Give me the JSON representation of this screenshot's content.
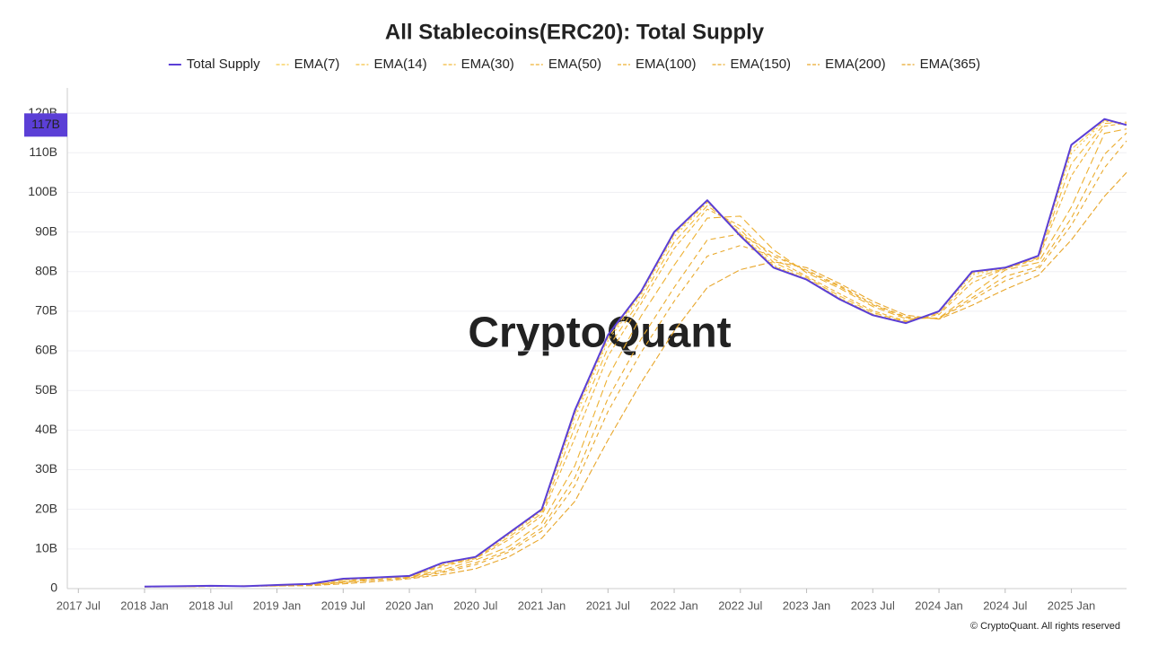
{
  "chart_data": {
    "type": "line",
    "title": "All Stablecoins(ERC20): Total Supply",
    "watermark": "CryptoQuant",
    "copyright": "© CryptoQuant. All rights reserved",
    "x": [
      "2018-01",
      "2018-04",
      "2018-07",
      "2018-10",
      "2019-01",
      "2019-04",
      "2019-07",
      "2019-10",
      "2020-01",
      "2020-04",
      "2020-07",
      "2020-10",
      "2021-01",
      "2021-04",
      "2021-07",
      "2021-10",
      "2022-01",
      "2022-04",
      "2022-07",
      "2022-10",
      "2023-01",
      "2023-04",
      "2023-07",
      "2023-10",
      "2024-01",
      "2024-04",
      "2024-07",
      "2024-10",
      "2025-01",
      "2025-04",
      "2025-06"
    ],
    "xlim": [
      "2017-06",
      "2025-06"
    ],
    "xticks": [
      {
        "value": "2017-07",
        "label": "2017 Jul"
      },
      {
        "value": "2018-01",
        "label": "2018 Jan"
      },
      {
        "value": "2018-07",
        "label": "2018 Jul"
      },
      {
        "value": "2019-01",
        "label": "2019 Jan"
      },
      {
        "value": "2019-07",
        "label": "2019 Jul"
      },
      {
        "value": "2020-01",
        "label": "2020 Jan"
      },
      {
        "value": "2020-07",
        "label": "2020 Jul"
      },
      {
        "value": "2021-01",
        "label": "2021 Jan"
      },
      {
        "value": "2021-07",
        "label": "2021 Jul"
      },
      {
        "value": "2022-01",
        "label": "2022 Jan"
      },
      {
        "value": "2022-07",
        "label": "2022 Jul"
      },
      {
        "value": "2023-01",
        "label": "2023 Jan"
      },
      {
        "value": "2023-07",
        "label": "2023 Jul"
      },
      {
        "value": "2024-01",
        "label": "2024 Jan"
      },
      {
        "value": "2024-07",
        "label": "2024 Jul"
      },
      {
        "value": "2025-01",
        "label": "2025 Jan"
      }
    ],
    "ylim": [
      0,
      125
    ],
    "yticks": [
      0,
      {
        "value": 10,
        "label": "10B"
      },
      {
        "value": 20,
        "label": "20B"
      },
      {
        "value": 30,
        "label": "30B"
      },
      {
        "value": 40,
        "label": "40B"
      },
      {
        "value": 50,
        "label": "50B"
      },
      {
        "value": 60,
        "label": "60B"
      },
      {
        "value": 70,
        "label": "70B"
      },
      {
        "value": 80,
        "label": "80B"
      },
      {
        "value": 90,
        "label": "90B"
      },
      {
        "value": 100,
        "label": "100B"
      },
      {
        "value": 110,
        "label": "110B"
      },
      {
        "value": 120,
        "label": "120B"
      }
    ],
    "grid": true,
    "series": [
      {
        "name": "Total Supply",
        "color": "#5b3fd6",
        "values": [
          0.5,
          0.6,
          0.7,
          0.6,
          0.9,
          1.2,
          2.5,
          2.8,
          3.2,
          6.5,
          8,
          14,
          20,
          45,
          64,
          75,
          90,
          98,
          89,
          81,
          78,
          73,
          69,
          67,
          70,
          80,
          81,
          84,
          112,
          118.5,
          117
        ],
        "value_labels": [
          null,
          null,
          null,
          null,
          null,
          null,
          null,
          null,
          null,
          null,
          null,
          null,
          null,
          null,
          null,
          null,
          null,
          null,
          null,
          null,
          null,
          null,
          null,
          null,
          null,
          null,
          null,
          null,
          null,
          null,
          "117B"
        ]
      },
      {
        "name": "EMA(7)",
        "color": "#f7c948",
        "values": [
          0.5,
          0.6,
          0.7,
          0.6,
          0.89,
          1.19,
          2.45,
          2.79,
          3.18,
          6.37,
          7.94,
          13.76,
          19.76,
          44,
          63.2,
          74.6,
          89.4,
          97.7,
          89.4,
          81.3,
          78.1,
          73.2,
          69.2,
          67.1,
          69.9,
          79.6,
          81,
          83.9,
          110.9,
          118.2,
          117.1
        ]
      },
      {
        "name": "EMA(14)",
        "color": "#f5c040",
        "values": [
          0.5,
          0.59,
          0.69,
          0.61,
          0.88,
          1.18,
          2.4,
          2.78,
          3.17,
          6.24,
          7.88,
          13.5,
          19.5,
          43,
          62.5,
          74.1,
          88.8,
          97.4,
          89.7,
          81.6,
          78.2,
          73.4,
          69.3,
          67.2,
          69.8,
          79.2,
          80.9,
          83.8,
          109.8,
          118,
          117.1
        ]
      },
      {
        "name": "EMA(30)",
        "color": "#f2b93a",
        "values": [
          0.5,
          0.58,
          0.68,
          0.62,
          0.85,
          1.15,
          2.28,
          2.75,
          3.13,
          5.94,
          7.75,
          12.98,
          18.98,
          40.75,
          60.77,
          73.13,
          87.45,
          96.64,
          90.53,
          82.36,
          78.51,
          73.85,
          69.68,
          67.34,
          69.49,
          78.3,
          80.83,
          83.49,
          107.24,
          117.4,
          117.75
        ]
      },
      {
        "name": "EMA(50)",
        "color": "#efb236",
        "values": [
          0.5,
          0.57,
          0.67,
          0.63,
          0.82,
          1.12,
          2.14,
          2.72,
          3.09,
          5.58,
          7.58,
          12.32,
          18.32,
          38,
          58.68,
          71.92,
          85.8,
          95.76,
          91.52,
          83.24,
          78.84,
          74.4,
          70.12,
          67.56,
          69.16,
          77.2,
          80.72,
          83.16,
          104.16,
          116.68,
          117.5
        ]
      },
      {
        "name": "EMA(100)",
        "color": "#edb031",
        "values": [
          0.5,
          0.5,
          0.6,
          0.7,
          0.7,
          1.0,
          1.8,
          2.6,
          3.0,
          4.7,
          7.2,
          10.6,
          16.6,
          31,
          53.4,
          68.8,
          81.6,
          93.5,
          94,
          85.5,
          79.7,
          75.8,
          71.2,
          68.1,
          68.3,
          74.4,
          80.4,
          82.3,
          96.3,
          114.9,
          116
        ]
      },
      {
        "name": "EMA(150)",
        "color": "#ebac2e",
        "values": [
          0.47,
          0.5,
          0.58,
          0.67,
          0.68,
          0.92,
          1.6,
          2.3,
          2.8,
          4.3,
          6.5,
          9.7,
          15.3,
          28,
          48,
          63,
          76,
          88,
          89.5,
          84.5,
          80.1,
          76.2,
          71.6,
          68.4,
          68.2,
          73.4,
          78.8,
          81.2,
          93.5,
          109.6,
          115
        ]
      },
      {
        "name": "EMA(200)",
        "color": "#e9a92c",
        "values": [
          0.45,
          0.5,
          0.57,
          0.64,
          0.67,
          0.86,
          1.5,
          2.2,
          2.7,
          4.0,
          6.0,
          9.2,
          14.5,
          26,
          44.7,
          59.6,
          72.5,
          83.9,
          86.6,
          83.9,
          80.4,
          76.5,
          71.9,
          68.6,
          68.1,
          72.8,
          77.7,
          80.6,
          91.7,
          106.2,
          113
        ]
      },
      {
        "name": "EMA(365)",
        "color": "#e8a62a",
        "values": [
          0.4,
          0.5,
          0.55,
          0.6,
          0.65,
          0.75,
          1.2,
          1.8,
          2.5,
          3.5,
          5,
          8,
          12.7,
          22,
          37.5,
          52,
          65,
          76,
          80.5,
          82.5,
          81,
          77,
          72.5,
          69,
          68,
          71.5,
          75.5,
          79,
          88,
          99,
          105
        ]
      }
    ]
  }
}
